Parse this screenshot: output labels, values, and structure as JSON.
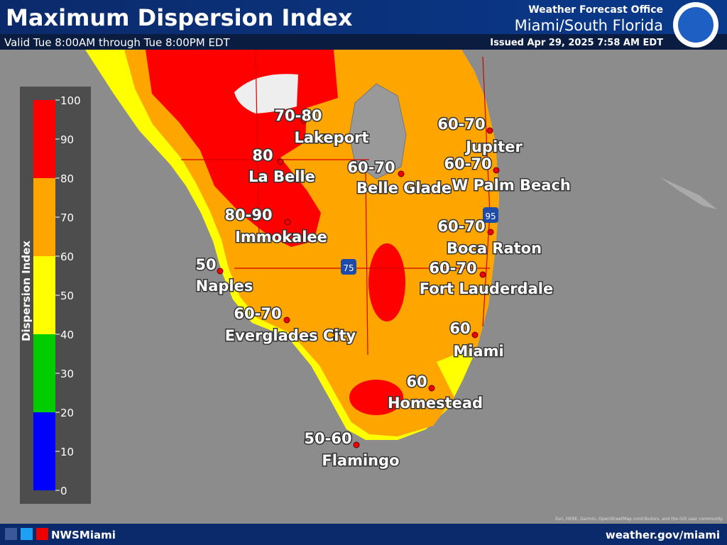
{
  "header": {
    "title": "Maximum Dispersion Index",
    "valid": "Valid Tue 8:00AM through Tue 8:00PM EDT",
    "office": "Weather Forecast Office",
    "location": "Miami/South Florida",
    "issued": "Issued Apr 29, 2025 7:58 AM EDT"
  },
  "legend": {
    "title": "Dispersion Index",
    "ticks": [
      0,
      10,
      20,
      30,
      40,
      50,
      60,
      70,
      80,
      90,
      100
    ],
    "bands": [
      {
        "from": 0,
        "to": 20,
        "color": "#0000ff"
      },
      {
        "from": 20,
        "to": 40,
        "color": "#00cc00"
      },
      {
        "from": 40,
        "to": 60,
        "color": "#ffff00"
      },
      {
        "from": 60,
        "to": 80,
        "color": "#ffa500"
      },
      {
        "from": 80,
        "to": 100,
        "color": "#ff0000"
      }
    ]
  },
  "cities": [
    {
      "name": "Lakeport",
      "value": "70-80"
    },
    {
      "name": "La Belle",
      "value": "80"
    },
    {
      "name": "Immokalee",
      "value": "80-90"
    },
    {
      "name": "Naples",
      "value": "50"
    },
    {
      "name": "Everglades City",
      "value": "60-70"
    },
    {
      "name": "Belle Glade",
      "value": "60-70"
    },
    {
      "name": "Jupiter",
      "value": "60-70"
    },
    {
      "name": "W Palm Beach",
      "value": "60-70"
    },
    {
      "name": "Boca Raton",
      "value": "60-70"
    },
    {
      "name": "Fort Lauderdale",
      "value": "60-70"
    },
    {
      "name": "Miami",
      "value": "60"
    },
    {
      "name": "Homestead",
      "value": "60"
    },
    {
      "name": "Flamingo",
      "value": "50-60"
    }
  ],
  "highways": [
    "75",
    "95"
  ],
  "footer": {
    "social": "NWSMiami",
    "url": "weather.gov/miami",
    "attribution": "Esri, HERE, Garmin, OpenStreetMap contributors, and the GIS user community"
  }
}
